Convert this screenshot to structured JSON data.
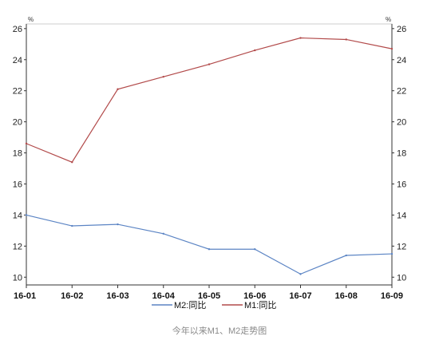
{
  "caption": "今年以来M1、M2走势图",
  "chart_data": {
    "type": "line",
    "title": "",
    "xlabel": "",
    "ylabel": "",
    "unit_left": "%",
    "unit_right": "%",
    "categories": [
      "16-01",
      "16-02",
      "16-03",
      "16-04",
      "16-05",
      "16-06",
      "16-07",
      "16-08",
      "16-09"
    ],
    "ylim": [
      9.5,
      26.3
    ],
    "yticks": [
      10,
      12,
      14,
      16,
      18,
      20,
      22,
      24,
      26
    ],
    "grid": false,
    "legend_position": "bottom",
    "series": [
      {
        "name": "M2:同比",
        "color": "#5b84c4",
        "values": [
          14.0,
          13.3,
          13.4,
          12.8,
          11.8,
          11.8,
          10.2,
          11.4,
          11.5
        ]
      },
      {
        "name": "M1:同比",
        "color": "#b24a4a",
        "values": [
          18.6,
          17.4,
          22.1,
          22.9,
          23.7,
          24.6,
          25.4,
          25.3,
          24.7
        ]
      }
    ]
  }
}
